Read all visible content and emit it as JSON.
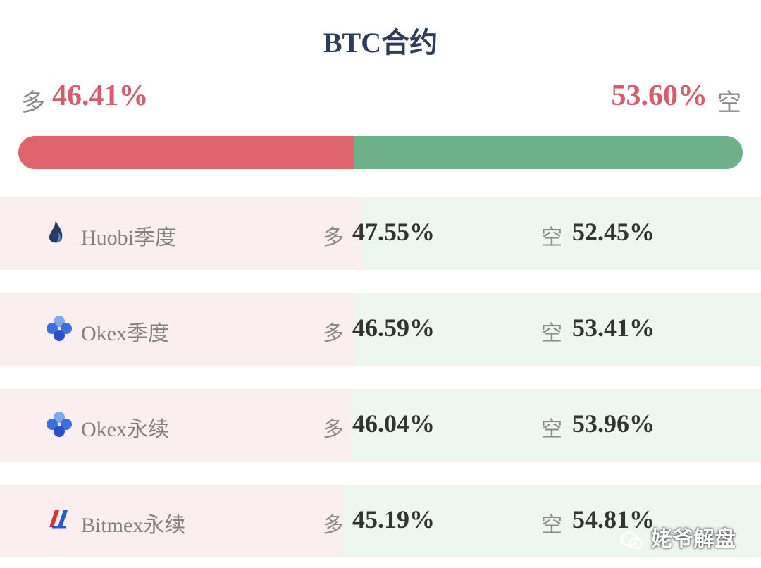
{
  "title": "BTC合约",
  "summary": {
    "long_label": "多",
    "long": {
      "value": 46.41,
      "label": "46.41%"
    },
    "short": {
      "value": 53.6,
      "label": "53.60%"
    },
    "short_label": "空"
  },
  "rows": [
    {
      "name": "Huobi季度",
      "long_label": "多",
      "long": {
        "value": 47.55,
        "label": "47.55%"
      },
      "short_label": "空",
      "short": {
        "value": 52.45,
        "label": "52.45%"
      }
    },
    {
      "name": "Okex季度",
      "long_label": "多",
      "long": {
        "value": 46.59,
        "label": "46.59%"
      },
      "short_label": "空",
      "short": {
        "value": 53.41,
        "label": "53.41%"
      }
    },
    {
      "name": "Okex永续",
      "long_label": "多",
      "long": {
        "value": 46.04,
        "label": "46.04%"
      },
      "short_label": "空",
      "short": {
        "value": 53.96,
        "label": "53.96%"
      }
    },
    {
      "name": "Bitmex永续",
      "long_label": "多",
      "long": {
        "value": 45.19,
        "label": "45.19%"
      },
      "short_label": "空",
      "short": {
        "value": 54.81,
        "label": "54.81%"
      }
    }
  ],
  "watermark": "姥爷解盘"
}
